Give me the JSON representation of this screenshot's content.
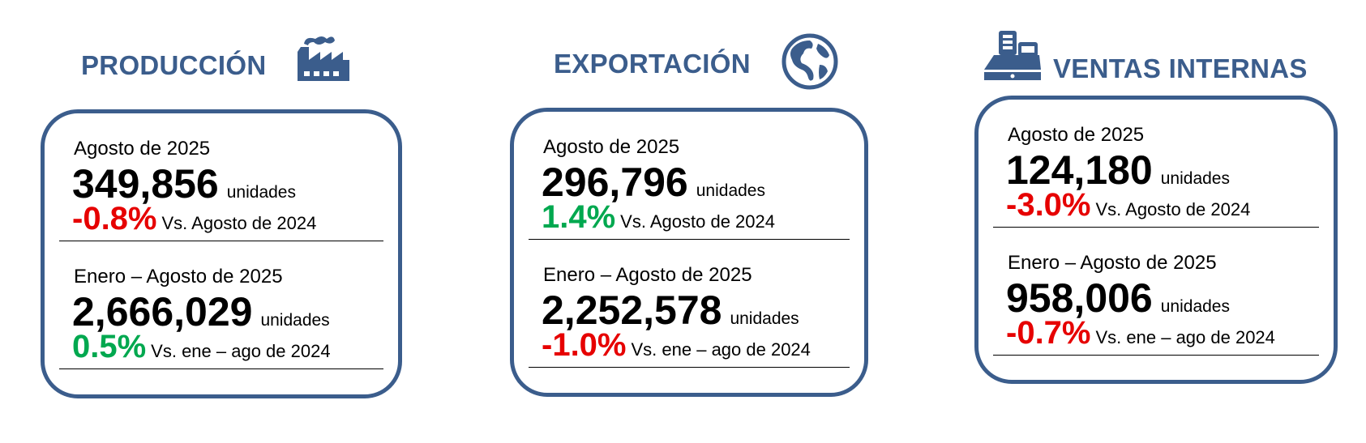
{
  "colors": {
    "brand": "#3b5d8c",
    "negative": "#e60000",
    "positive": "#00a84f"
  },
  "panels": [
    {
      "title": "PRODUCCIÓN",
      "icon": "factory-icon",
      "month": {
        "label": "Agosto de 2025",
        "value": "349,856",
        "unit": "unidades",
        "change": "-0.8%",
        "trend": "negative",
        "comparison": "Vs. Agosto de 2024"
      },
      "ytd": {
        "label": "Enero – Agosto de 2025",
        "value": "2,666,029",
        "unit": "unidades",
        "change": "0.5%",
        "trend": "positive",
        "comparison": "Vs. ene – ago de 2024"
      }
    },
    {
      "title": "EXPORTACIÓN",
      "icon": "globe-icon",
      "month": {
        "label": "Agosto de 2025",
        "value": "296,796",
        "unit": "unidades",
        "change": "1.4%",
        "trend": "positive",
        "comparison": "Vs. Agosto de 2024"
      },
      "ytd": {
        "label": "Enero – Agosto de 2025",
        "value": "2,252,578",
        "unit": "unidades",
        "change": "-1.0%",
        "trend": "negative",
        "comparison": "Vs. ene – ago de 2024"
      }
    },
    {
      "title": "VENTAS INTERNAS",
      "icon": "cash-register-icon",
      "month": {
        "label": "Agosto de 2025",
        "value": "124,180",
        "unit": "unidades",
        "change": "-3.0%",
        "trend": "negative",
        "comparison": "Vs. Agosto de 2024"
      },
      "ytd": {
        "label": "Enero – Agosto de 2025",
        "value": "958,006",
        "unit": "unidades",
        "change": "-0.7%",
        "trend": "negative",
        "comparison": "Vs. ene – ago de 2024"
      }
    }
  ]
}
